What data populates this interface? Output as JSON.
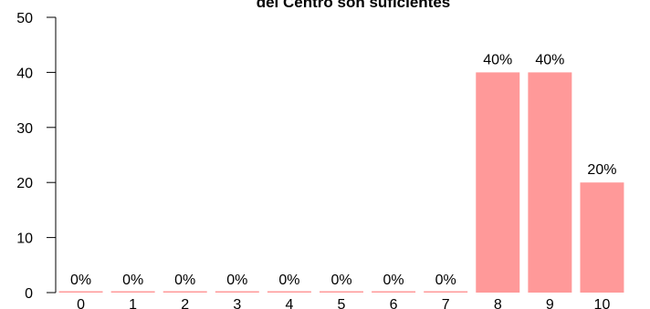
{
  "chart_data": {
    "type": "bar",
    "title": "del Centro son suficientes",
    "xlabel": "",
    "ylabel": "",
    "categories": [
      "0",
      "1",
      "2",
      "3",
      "4",
      "5",
      "6",
      "7",
      "8",
      "9",
      "10"
    ],
    "values": [
      0,
      0,
      0,
      0,
      0,
      0,
      0,
      0,
      40,
      40,
      20
    ],
    "data_labels": [
      "0%",
      "0%",
      "0%",
      "0%",
      "0%",
      "0%",
      "0%",
      "0%",
      "40%",
      "40%",
      "20%"
    ],
    "ylim": [
      0,
      50
    ],
    "yticks": [
      "0",
      "10",
      "20",
      "30",
      "40",
      "50"
    ],
    "grid": false,
    "bar_color": "#ff9999"
  }
}
